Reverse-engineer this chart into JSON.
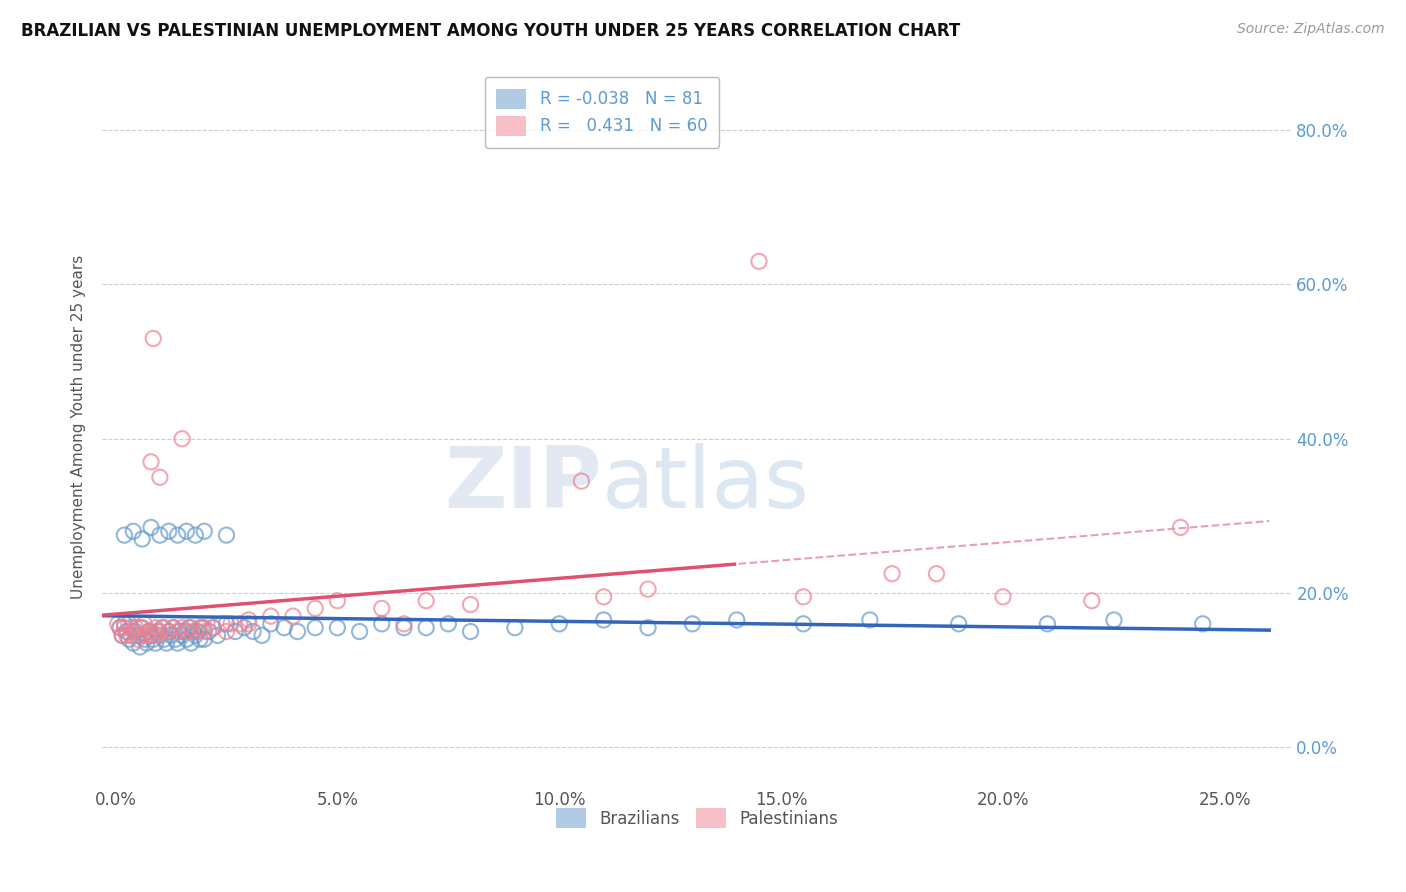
{
  "title": "BRAZILIAN VS PALESTINIAN UNEMPLOYMENT AMONG YOUTH UNDER 25 YEARS CORRELATION CHART",
  "source": "Source: ZipAtlas.com",
  "xlabel_vals": [
    0.0,
    5.0,
    10.0,
    15.0,
    20.0,
    25.0
  ],
  "ylabel_vals": [
    0.0,
    20.0,
    40.0,
    60.0,
    80.0
  ],
  "xlim": [
    -0.3,
    26.5
  ],
  "ylim": [
    -5.0,
    88.0
  ],
  "ylabel": "Unemployment Among Youth under 25 years",
  "legend_brazil_r": "-0.038",
  "legend_brazil_n": "81",
  "legend_pal_r": "0.431",
  "legend_pal_n": "60",
  "brazil_scatter_color": "#6699cc",
  "pal_scatter_color": "#f08090",
  "watermark_zip": "ZIP",
  "watermark_atlas": "atlas",
  "brazil_line_color": "#3366bb",
  "pal_line_color": "#e05070",
  "pal_dashed_color": "#e8a0b0",
  "brazil_points_x": [
    0.1,
    0.15,
    0.2,
    0.25,
    0.3,
    0.35,
    0.4,
    0.45,
    0.5,
    0.55,
    0.6,
    0.65,
    0.7,
    0.75,
    0.8,
    0.85,
    0.9,
    0.95,
    1.0,
    1.05,
    1.1,
    1.15,
    1.2,
    1.25,
    1.3,
    1.35,
    1.4,
    1.45,
    1.5,
    1.55,
    1.6,
    1.65,
    1.7,
    1.75,
    1.8,
    1.85,
    1.9,
    1.95,
    2.0,
    2.1,
    2.2,
    2.3,
    2.5,
    2.7,
    2.9,
    3.1,
    3.3,
    3.5,
    3.8,
    4.1,
    4.5,
    5.0,
    5.5,
    6.0,
    6.5,
    7.0,
    7.5,
    8.0,
    9.0,
    10.0,
    11.0,
    12.0,
    13.0,
    14.0,
    15.5,
    17.0,
    19.0,
    21.0,
    22.5,
    24.5,
    0.2,
    0.4,
    0.6,
    0.8,
    1.0,
    1.2,
    1.4,
    1.6,
    1.8,
    2.0,
    2.5
  ],
  "brazil_points_y": [
    15.5,
    14.5,
    16.0,
    15.0,
    14.0,
    15.5,
    13.5,
    15.0,
    14.5,
    13.0,
    15.5,
    14.0,
    13.5,
    15.0,
    14.5,
    14.0,
    13.5,
    15.0,
    14.5,
    15.5,
    14.0,
    13.5,
    15.0,
    14.5,
    15.5,
    14.0,
    13.5,
    15.0,
    14.5,
    15.0,
    14.0,
    15.5,
    13.5,
    15.0,
    14.5,
    15.0,
    14.0,
    15.5,
    14.0,
    15.0,
    15.5,
    14.5,
    16.0,
    15.0,
    15.5,
    15.0,
    14.5,
    16.0,
    15.5,
    15.0,
    15.5,
    15.5,
    15.0,
    16.0,
    15.5,
    15.5,
    16.0,
    15.0,
    15.5,
    16.0,
    16.5,
    15.5,
    16.0,
    16.5,
    16.0,
    16.5,
    16.0,
    16.0,
    16.5,
    16.0,
    27.5,
    28.0,
    27.0,
    28.5,
    27.5,
    28.0,
    27.5,
    28.0,
    27.5,
    28.0,
    27.5
  ],
  "pal_points_x": [
    0.05,
    0.1,
    0.15,
    0.2,
    0.25,
    0.3,
    0.35,
    0.4,
    0.45,
    0.5,
    0.55,
    0.6,
    0.65,
    0.7,
    0.75,
    0.8,
    0.85,
    0.9,
    0.95,
    1.0,
    1.1,
    1.2,
    1.3,
    1.4,
    1.5,
    1.6,
    1.7,
    1.8,
    1.9,
    2.0,
    2.2,
    2.4,
    2.6,
    2.8,
    3.0,
    3.5,
    4.0,
    5.0,
    6.0,
    7.0,
    8.0,
    10.5,
    12.0,
    14.5,
    15.5,
    17.5,
    18.5,
    20.0,
    22.0,
    24.0,
    0.8,
    0.85,
    1.0,
    1.5,
    2.0,
    2.5,
    3.0,
    4.5,
    6.5,
    11.0
  ],
  "pal_points_y": [
    16.0,
    15.5,
    14.5,
    15.5,
    14.5,
    16.0,
    14.5,
    15.0,
    15.5,
    14.0,
    15.5,
    14.5,
    16.0,
    14.5,
    15.0,
    15.0,
    14.5,
    15.5,
    14.5,
    15.0,
    15.5,
    15.0,
    15.5,
    15.0,
    15.5,
    15.0,
    15.5,
    15.0,
    15.5,
    15.5,
    15.5,
    16.0,
    16.0,
    16.0,
    16.0,
    17.0,
    17.0,
    19.0,
    18.0,
    19.0,
    18.5,
    34.5,
    20.5,
    63.0,
    19.5,
    22.5,
    22.5,
    19.5,
    19.0,
    28.5,
    37.0,
    53.0,
    35.0,
    40.0,
    15.0,
    15.0,
    16.5,
    18.0,
    16.0,
    19.5
  ]
}
